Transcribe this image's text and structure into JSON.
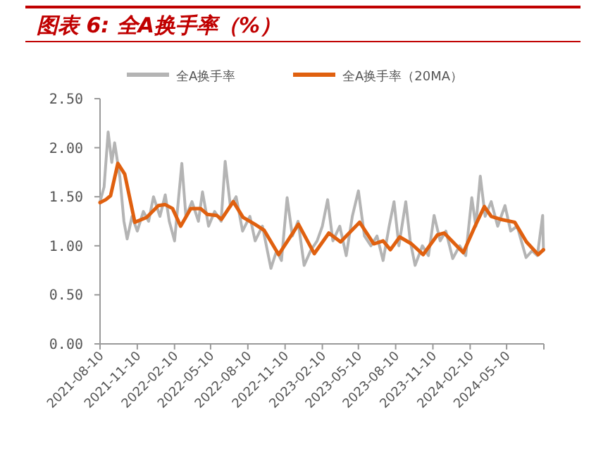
{
  "chart_data": {
    "type": "line",
    "title": "图表 6: 全A换手率（%）",
    "legend": "top",
    "grid": false,
    "xlim": [
      "2021-08-10",
      "2024-08-10"
    ],
    "xticks": [
      {
        "value": "2021-08-10",
        "label": "2021-08-10"
      },
      {
        "value": "2021-11-10",
        "label": "2021-11-10"
      },
      {
        "value": "2022-02-10",
        "label": "2022-02-10"
      },
      {
        "value": "2022-05-10",
        "label": "2022-05-10"
      },
      {
        "value": "2022-08-10",
        "label": "2022-08-10"
      },
      {
        "value": "2022-11-10",
        "label": "2022-11-10"
      },
      {
        "value": "2023-02-10",
        "label": "2023-02-10"
      },
      {
        "value": "2023-05-10",
        "label": "2023-05-10"
      },
      {
        "value": "2023-08-10",
        "label": "2023-08-10"
      },
      {
        "value": "2023-11-10",
        "label": "2023-11-10"
      },
      {
        "value": "2024-02-10",
        "label": "2024-02-10"
      },
      {
        "value": "2024-05-10",
        "label": "2024-05-10"
      },
      {
        "value": "2024-08-10",
        "label": null
      }
    ],
    "ylim": [
      0,
      2.5
    ],
    "yticks": [
      {
        "value": 0,
        "label": "0.00"
      },
      {
        "value": 0.5,
        "label": "0.50"
      },
      {
        "value": 1,
        "label": "1.00"
      },
      {
        "value": 1.5,
        "label": "1.50"
      },
      {
        "value": 2,
        "label": "2.00"
      },
      {
        "value": 2.5,
        "label": "2.50"
      }
    ],
    "series": [
      {
        "name": "全A换手率",
        "color": "#b4b4b4",
        "line_style": "solid",
        "x": [
          "2021-08-10",
          "2021-08-20",
          "2021-08-30",
          "2021-09-08",
          "2021-09-15",
          "2021-09-28",
          "2021-10-08",
          "2021-10-16",
          "2021-10-28",
          "2021-11-10",
          "2021-11-25",
          "2021-12-08",
          "2021-12-20",
          "2022-01-05",
          "2022-01-18",
          "2022-01-28",
          "2022-02-10",
          "2022-02-28",
          "2022-03-10",
          "2022-03-25",
          "2022-04-10",
          "2022-04-20",
          "2022-05-05",
          "2022-05-20",
          "2022-06-05",
          "2022-06-15",
          "2022-06-28",
          "2022-07-12",
          "2022-07-28",
          "2022-08-15",
          "2022-08-28",
          "2022-09-15",
          "2022-10-06",
          "2022-10-20",
          "2022-11-01",
          "2022-11-15",
          "2022-11-28",
          "2022-12-12",
          "2022-12-27",
          "2023-01-12",
          "2023-01-28",
          "2023-02-10",
          "2023-02-23",
          "2023-03-08",
          "2023-03-25",
          "2023-04-10",
          "2023-04-25",
          "2023-05-10",
          "2023-05-25",
          "2023-06-10",
          "2023-06-25",
          "2023-07-10",
          "2023-07-25",
          "2023-08-06",
          "2023-08-18",
          "2023-09-04",
          "2023-09-15",
          "2023-09-27",
          "2023-10-15",
          "2023-10-30",
          "2023-11-13",
          "2023-11-28",
          "2023-12-12",
          "2023-12-29",
          "2024-01-15",
          "2024-01-30",
          "2024-02-14",
          "2024-02-24",
          "2024-03-06",
          "2024-03-18",
          "2024-04-02",
          "2024-04-18",
          "2024-05-06",
          "2024-05-20",
          "2024-06-05",
          "2024-06-27",
          "2024-07-12",
          "2024-07-25",
          "2024-08-07",
          "2024-08-09"
        ],
        "values": [
          1.45,
          1.6,
          2.16,
          1.85,
          2.05,
          1.7,
          1.25,
          1.07,
          1.3,
          1.15,
          1.35,
          1.25,
          1.5,
          1.3,
          1.52,
          1.25,
          1.05,
          1.84,
          1.3,
          1.45,
          1.25,
          1.55,
          1.2,
          1.35,
          1.25,
          1.86,
          1.4,
          1.5,
          1.15,
          1.3,
          1.05,
          1.2,
          0.77,
          0.95,
          0.85,
          1.49,
          1.1,
          1.25,
          0.8,
          0.95,
          1.05,
          1.2,
          1.47,
          1.05,
          1.2,
          0.9,
          1.3,
          1.56,
          1.1,
          1.0,
          1.1,
          0.85,
          1.2,
          1.45,
          1.0,
          1.45,
          1.05,
          0.8,
          1.0,
          0.9,
          1.31,
          1.05,
          1.15,
          0.87,
          1.0,
          0.9,
          1.49,
          1.2,
          1.71,
          1.3,
          1.45,
          1.2,
          1.41,
          1.15,
          1.2,
          0.88,
          0.95,
          0.9,
          1.31,
          0.95
        ]
      },
      {
        "name": "全A换手率（20MA）",
        "color": "#e0600f",
        "line_style": "solid",
        "x": [
          "2021-08-10",
          "2021-08-24",
          "2021-09-05",
          "2021-09-23",
          "2021-10-10",
          "2021-11-04",
          "2021-12-03",
          "2022-01-01",
          "2022-01-18",
          "2022-02-05",
          "2022-02-25",
          "2022-03-22",
          "2022-04-15",
          "2022-05-02",
          "2022-05-25",
          "2022-06-06",
          "2022-07-05",
          "2022-07-29",
          "2022-08-27",
          "2022-09-19",
          "2022-10-25",
          "2022-11-29",
          "2022-12-13",
          "2023-01-21",
          "2023-02-26",
          "2023-03-27",
          "2023-05-13",
          "2023-06-17",
          "2023-07-10",
          "2023-07-28",
          "2023-08-20",
          "2023-09-18",
          "2023-10-17",
          "2023-11-21",
          "2023-12-08",
          "2024-01-24",
          "2024-02-22",
          "2024-03-16",
          "2024-04-02",
          "2024-04-25",
          "2024-05-30",
          "2024-06-28",
          "2024-07-27",
          "2024-08-09"
        ],
        "values": [
          1.44,
          1.47,
          1.51,
          1.84,
          1.73,
          1.24,
          1.29,
          1.41,
          1.42,
          1.38,
          1.2,
          1.38,
          1.38,
          1.32,
          1.31,
          1.27,
          1.45,
          1.29,
          1.22,
          1.16,
          0.91,
          1.13,
          1.22,
          0.92,
          1.13,
          1.04,
          1.24,
          1.02,
          1.05,
          0.96,
          1.09,
          1.02,
          0.91,
          1.11,
          1.13,
          0.93,
          1.2,
          1.4,
          1.3,
          1.27,
          1.24,
          1.04,
          0.91,
          0.96
        ]
      }
    ]
  }
}
